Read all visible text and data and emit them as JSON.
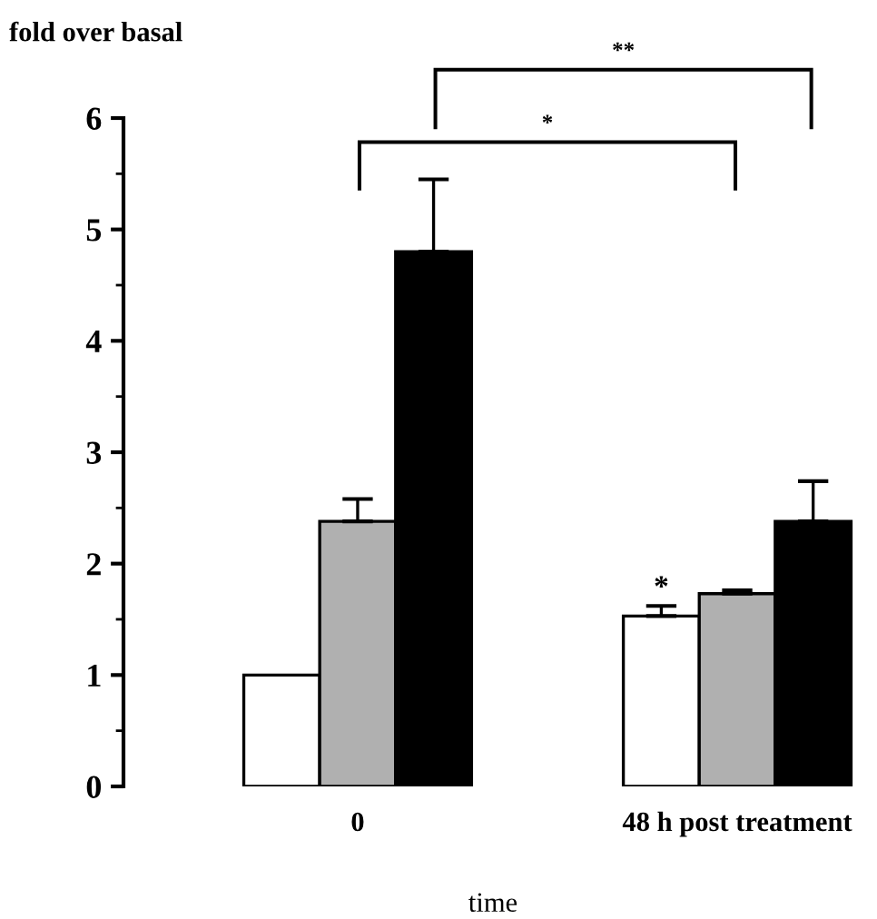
{
  "chart_data": {
    "type": "bar",
    "ylabel": "fold over basal",
    "xlabel": "time",
    "categories": [
      "0",
      "48 h post treatment"
    ],
    "series": [
      {
        "color": "#ffffff",
        "values": [
          1.0,
          1.53
        ],
        "errors": [
          null,
          0.09
        ]
      },
      {
        "color": "#b0b0b0",
        "values": [
          2.38,
          1.73
        ],
        "errors": [
          0.2,
          0.03
        ]
      },
      {
        "color": "#000000",
        "values": [
          4.8,
          2.38
        ],
        "errors": [
          0.65,
          0.36
        ]
      }
    ],
    "ylim": [
      0,
      6
    ],
    "yticks": [
      0,
      1,
      2,
      3,
      4,
      5,
      6
    ],
    "grid": false,
    "annotations": [
      "**",
      "*",
      "*"
    ]
  }
}
